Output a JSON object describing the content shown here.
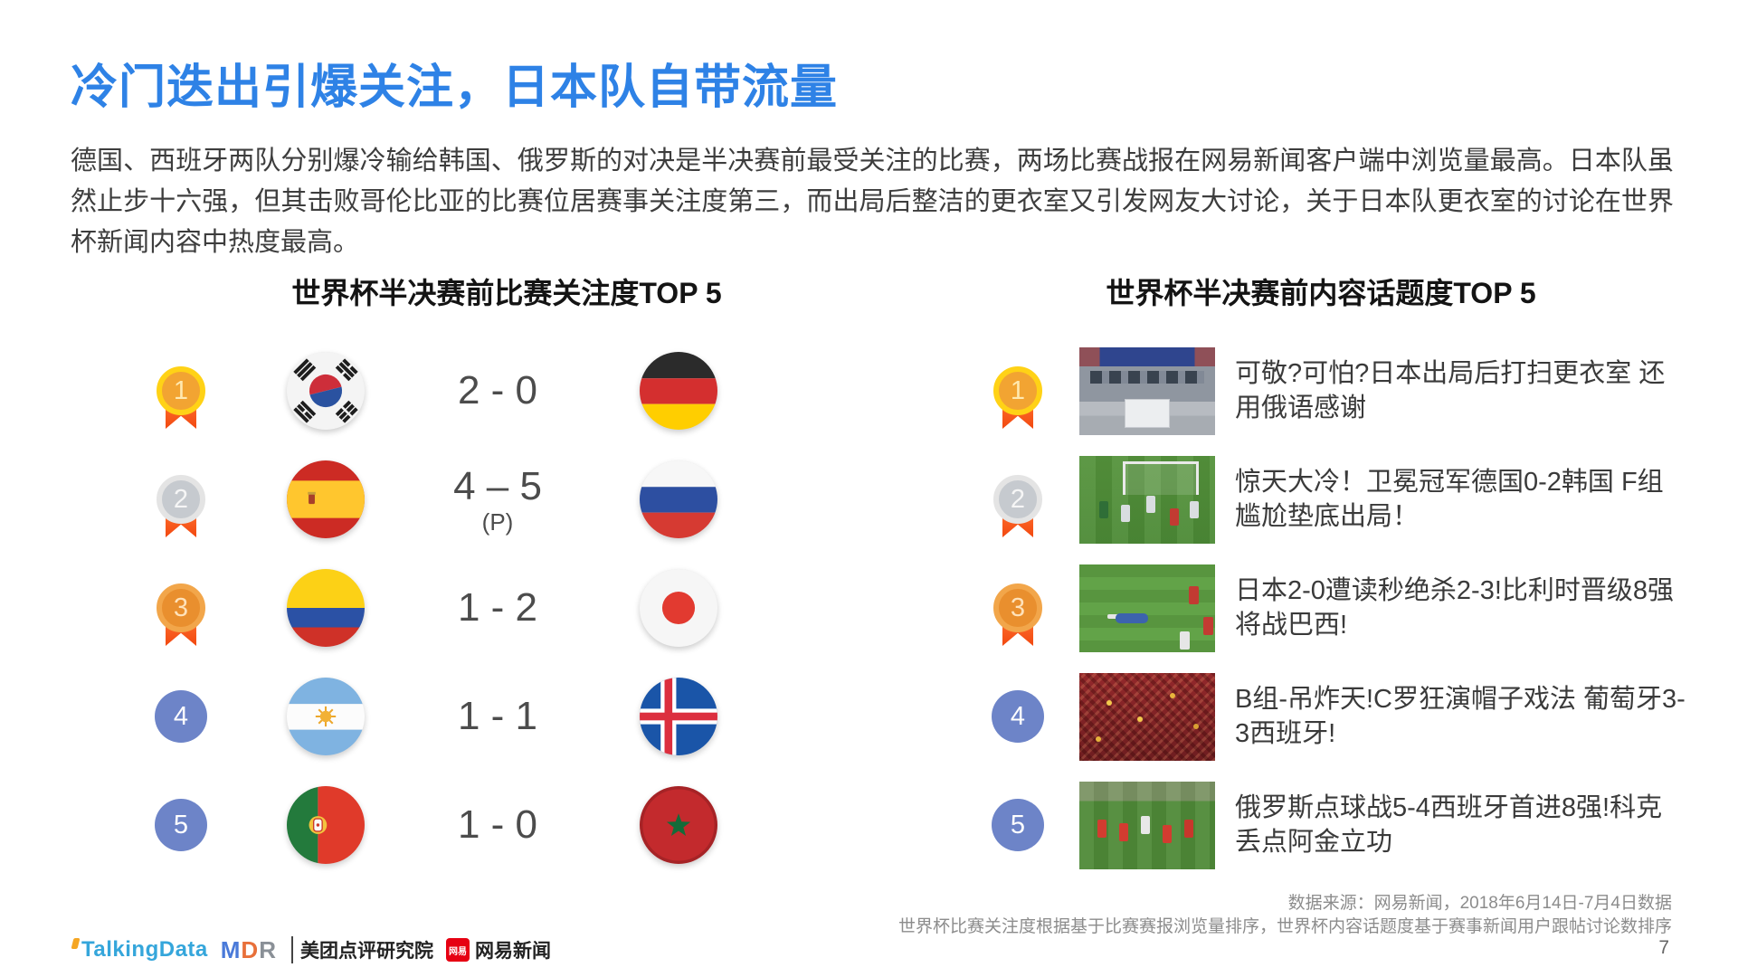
{
  "slide": {
    "title": "冷门迭出引爆关注，日本队自带流量",
    "paragraph": "德国、西班牙两队分别爆冷输给韩国、俄罗斯的对决是半决赛前最受关注的比赛，两场比赛战报在网易新闻客户端中浏览量最高。日本队虽然止步十六强，但其击败哥伦比亚的比赛位居赛事关注度第三，而出局后整洁的更衣室又引发网友大讨论，关于日本队更衣室的讨论在世界杯新闻内容中热度最高。",
    "page_number": "7"
  },
  "left_panel": {
    "title": "世界杯半决赛前比赛关注度TOP 5",
    "rows": [
      {
        "rank": "1",
        "rank_type": "gold",
        "team1": "south-korea",
        "score": "2 - 0",
        "score_note": "",
        "team2": "germany"
      },
      {
        "rank": "2",
        "rank_type": "silver",
        "team1": "spain",
        "score": "4 – 5",
        "score_note": "(P)",
        "team2": "russia"
      },
      {
        "rank": "3",
        "rank_type": "bronze",
        "team1": "colombia",
        "score": "1 - 2",
        "score_note": "",
        "team2": "japan"
      },
      {
        "rank": "4",
        "rank_type": "plain",
        "team1": "argentina",
        "score": "1 - 1",
        "score_note": "",
        "team2": "iceland"
      },
      {
        "rank": "5",
        "rank_type": "plain",
        "team1": "portugal",
        "score": "1 - 0",
        "score_note": "",
        "team2": "morocco"
      }
    ]
  },
  "right_panel": {
    "title": "世界杯半决赛前内容话题度TOP 5",
    "rows": [
      {
        "rank": "1",
        "rank_type": "gold",
        "thumbnail": "locker-room",
        "headline": "可敬?可怕?日本出局后打扫更衣室 还用俄语感谢"
      },
      {
        "rank": "2",
        "rank_type": "silver",
        "thumbnail": "pitch-goal",
        "headline": "惊天大冷！卫冕冠军德国0-2韩国 F组尴尬垫底出局！"
      },
      {
        "rank": "3",
        "rank_type": "bronze",
        "thumbnail": "pitch-player-down",
        "headline": "日本2-0遭读秒绝杀2-3!比利时晋级8强将战巴西!"
      },
      {
        "rank": "4",
        "rank_type": "plain",
        "thumbnail": "red-fans",
        "headline": "B组-吊炸天!C罗狂演帽子戏法 葡萄牙3-3西班牙!"
      },
      {
        "rank": "5",
        "rank_type": "plain",
        "thumbnail": "pitch-celebration",
        "headline": "俄罗斯点球战5-4西班牙首进8强!科克丢点阿金立功"
      }
    ]
  },
  "footer": {
    "source_line1": "数据来源：网易新闻，2018年6月14日-7月4日数据",
    "source_line2": "世界杯比赛关注度根据基于比赛赛报浏览量排序，世界杯内容话题度基于赛事新闻用户跟帖讨论数排序",
    "logos": {
      "talkingdata": "TalkingData",
      "mdr": [
        "M",
        "D",
        "R"
      ],
      "meituan": "美团点评研究院",
      "netease_icon_text": "网易",
      "netease": "网易新闻"
    }
  },
  "colors": {
    "accent_blue": "#2E82E6",
    "rank_blue": "#6D84C8",
    "medal_gold": "#FFD216",
    "medal_silver": "#E4E4E4",
    "medal_bronze": "#F2A64A",
    "ribbon_red": "#F2480F",
    "netease_red": "#E60012",
    "talkingdata_blue": "#35A6DB"
  }
}
